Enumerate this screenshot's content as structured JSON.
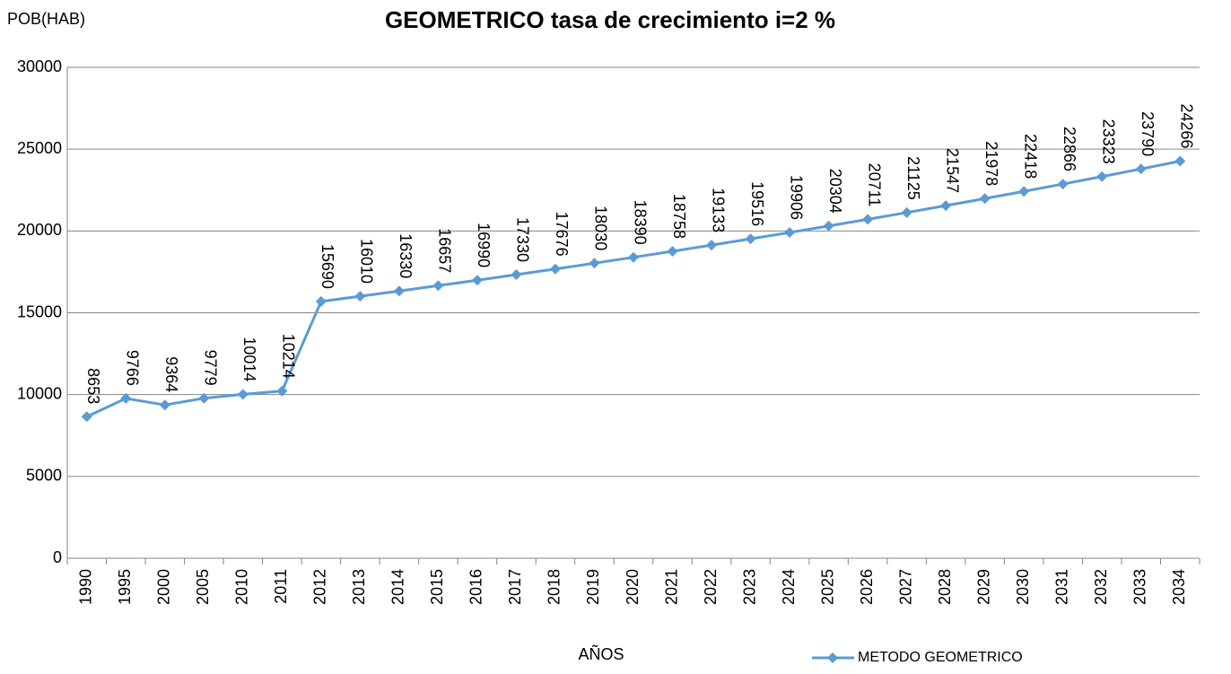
{
  "chart_data": {
    "type": "line",
    "title": "GEOMETRICO  tasa de crecimiento  i=2 %",
    "y_label": "POB(HAB)",
    "x_label": "AÑOS",
    "categories": [
      "1990",
      "1995",
      "2000",
      "2005",
      "2010",
      "2011",
      "2012",
      "2013",
      "2014",
      "2015",
      "2016",
      "2017",
      "2018",
      "2019",
      "2020",
      "2021",
      "2022",
      "2023",
      "2024",
      "2025",
      "2026",
      "2027",
      "2028",
      "2029",
      "2030",
      "2031",
      "2032",
      "2033",
      "2034"
    ],
    "series": [
      {
        "name": "METODO GEOMETRICO",
        "color": "#5b9bd5",
        "values": [
          8653,
          9766,
          9364,
          9779,
          10014,
          10214,
          15690,
          16010,
          16330,
          16657,
          16990,
          17330,
          17676,
          18030,
          18390,
          18758,
          19133,
          19516,
          19906,
          20304,
          20711,
          21125,
          21547,
          21978,
          22418,
          22866,
          23323,
          23790,
          24266
        ]
      }
    ],
    "ylim": [
      0,
      30000
    ],
    "yticks": [
      0,
      5000,
      10000,
      15000,
      20000,
      25000,
      30000
    ],
    "grid": true,
    "legend": "bottom-right"
  }
}
